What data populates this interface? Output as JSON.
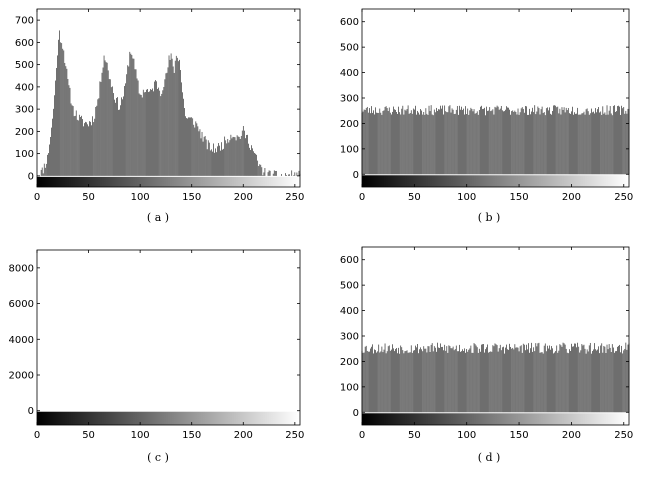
{
  "chart_data": [
    {
      "type": "bar",
      "caption": "( a )",
      "xlim": [
        0,
        255
      ],
      "ylim": [
        -50,
        750
      ],
      "xticks": [
        0,
        50,
        100,
        150,
        200,
        250
      ],
      "yticks": [
        0,
        100,
        200,
        300,
        400,
        500,
        600,
        700
      ],
      "x_profile": [
        0,
        5,
        10,
        15,
        18,
        20,
        22,
        25,
        28,
        30,
        35,
        40,
        45,
        50,
        55,
        60,
        63,
        65,
        67,
        70,
        75,
        80,
        85,
        88,
        90,
        92,
        95,
        100,
        105,
        110,
        115,
        118,
        120,
        123,
        125,
        128,
        130,
        133,
        135,
        138,
        140,
        143,
        145,
        150,
        155,
        160,
        165,
        170,
        175,
        180,
        185,
        190,
        195,
        200,
        205,
        210,
        215,
        220,
        225,
        230,
        235,
        240,
        245,
        250,
        255
      ],
      "y_profile": [
        0,
        20,
        80,
        250,
        420,
        560,
        640,
        590,
        500,
        420,
        300,
        260,
        240,
        235,
        260,
        360,
        480,
        540,
        520,
        450,
        360,
        310,
        380,
        480,
        550,
        560,
        480,
        360,
        390,
        370,
        420,
        400,
        380,
        420,
        440,
        520,
        530,
        480,
        540,
        530,
        420,
        300,
        260,
        250,
        230,
        180,
        140,
        120,
        125,
        140,
        170,
        190,
        170,
        200,
        160,
        110,
        50,
        15,
        5,
        0,
        0,
        0,
        0,
        0,
        0
      ],
      "spike_profile": [
        0,
        0,
        0,
        0,
        0,
        0,
        0,
        0,
        0,
        0,
        0,
        0,
        0,
        0,
        0,
        0,
        0,
        0,
        0,
        0,
        0,
        0,
        0,
        0,
        0,
        0,
        0,
        0,
        0,
        0,
        0,
        0,
        0,
        0,
        0,
        0,
        0,
        0,
        0,
        0,
        0,
        0,
        0,
        0,
        0,
        0,
        0,
        0,
        0,
        0,
        0,
        0,
        0,
        0,
        0,
        0,
        0,
        0,
        0,
        0,
        0,
        0,
        0,
        0,
        0
      ],
      "noise": 25,
      "seed": 11
    },
    {
      "type": "bar",
      "caption": "( b )",
      "xlim": [
        0,
        255
      ],
      "ylim": [
        -50,
        650
      ],
      "xticks": [
        0,
        50,
        100,
        150,
        200,
        250
      ],
      "yticks": [
        0,
        100,
        200,
        300,
        400,
        500,
        600
      ],
      "x_profile": [
        0,
        255
      ],
      "y_profile": [
        252,
        252
      ],
      "noise": 20,
      "seed": 23
    },
    {
      "type": "bar",
      "caption": "( c )",
      "xlim": [
        0,
        255
      ],
      "ylim": [
        -800,
        9000
      ],
      "xticks": [
        0,
        50,
        100,
        150,
        200,
        250
      ],
      "yticks": [
        0,
        2000,
        4000,
        6000,
        8000
      ],
      "x_profile": [
        0,
        255
      ],
      "y_profile": [
        0,
        0
      ],
      "spike_x": [],
      "spike_value": 0,
      "noise": 0,
      "seed": 37
    },
    {
      "type": "bar",
      "caption": "( d )",
      "xlim": [
        0,
        255
      ],
      "ylim": [
        -50,
        650
      ],
      "xticks": [
        0,
        50,
        100,
        150,
        200,
        250
      ],
      "yticks": [
        0,
        100,
        200,
        300,
        400,
        500,
        600
      ],
      "x_profile": [
        0,
        255
      ],
      "y_profile": [
        252,
        252
      ],
      "noise": 22,
      "seed": 53
    }
  ]
}
